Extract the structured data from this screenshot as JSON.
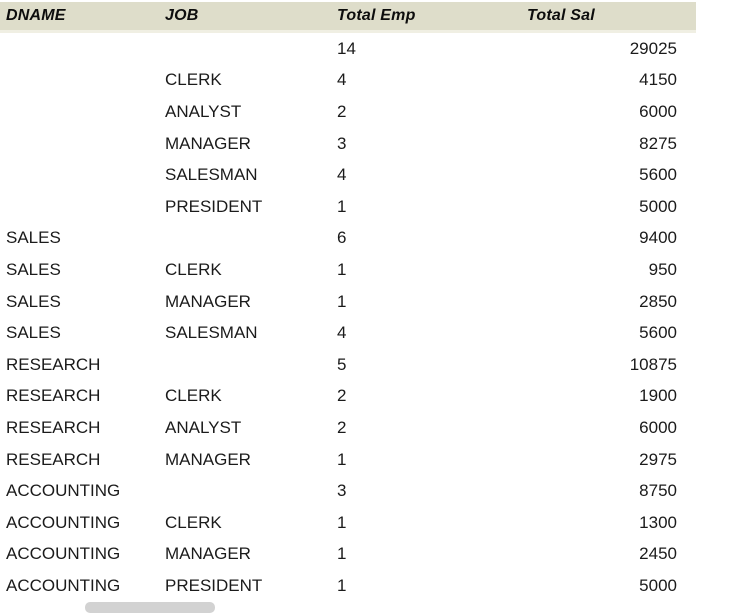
{
  "table": {
    "columns": [
      {
        "key": "dname",
        "label": "DNAME"
      },
      {
        "key": "job",
        "label": "JOB"
      },
      {
        "key": "emp",
        "label": "Total Emp"
      },
      {
        "key": "sal",
        "label": "Total Sal"
      }
    ],
    "rows": [
      {
        "dname": "",
        "job": "",
        "emp": "14",
        "sal": "29025"
      },
      {
        "dname": "",
        "job": "CLERK",
        "emp": "4",
        "sal": "4150"
      },
      {
        "dname": "",
        "job": "ANALYST",
        "emp": "2",
        "sal": "6000"
      },
      {
        "dname": "",
        "job": "MANAGER",
        "emp": "3",
        "sal": "8275"
      },
      {
        "dname": "",
        "job": "SALESMAN",
        "emp": "4",
        "sal": "5600"
      },
      {
        "dname": "",
        "job": "PRESIDENT",
        "emp": "1",
        "sal": "5000"
      },
      {
        "dname": "SALES",
        "job": "",
        "emp": "6",
        "sal": "9400"
      },
      {
        "dname": "SALES",
        "job": "CLERK",
        "emp": "1",
        "sal": "950"
      },
      {
        "dname": "SALES",
        "job": "MANAGER",
        "emp": "1",
        "sal": "2850"
      },
      {
        "dname": "SALES",
        "job": "SALESMAN",
        "emp": "4",
        "sal": "5600"
      },
      {
        "dname": "RESEARCH",
        "job": "",
        "emp": "5",
        "sal": "10875"
      },
      {
        "dname": "RESEARCH",
        "job": "CLERK",
        "emp": "2",
        "sal": "1900"
      },
      {
        "dname": "RESEARCH",
        "job": "ANALYST",
        "emp": "2",
        "sal": "6000"
      },
      {
        "dname": "RESEARCH",
        "job": "MANAGER",
        "emp": "1",
        "sal": "2975"
      },
      {
        "dname": "ACCOUNTING",
        "job": "",
        "emp": "3",
        "sal": "8750"
      },
      {
        "dname": "ACCOUNTING",
        "job": "CLERK",
        "emp": "1",
        "sal": "1300"
      },
      {
        "dname": "ACCOUNTING",
        "job": "MANAGER",
        "emp": "1",
        "sal": "2450"
      },
      {
        "dname": "ACCOUNTING",
        "job": "PRESIDENT",
        "emp": "1",
        "sal": "5000"
      }
    ]
  },
  "colors": {
    "header_bg": "#deddca",
    "header_border_bottom": "#f0efe3",
    "body_text": "#1b1b1b",
    "scrollbar_thumb": "#d2d2d2"
  }
}
